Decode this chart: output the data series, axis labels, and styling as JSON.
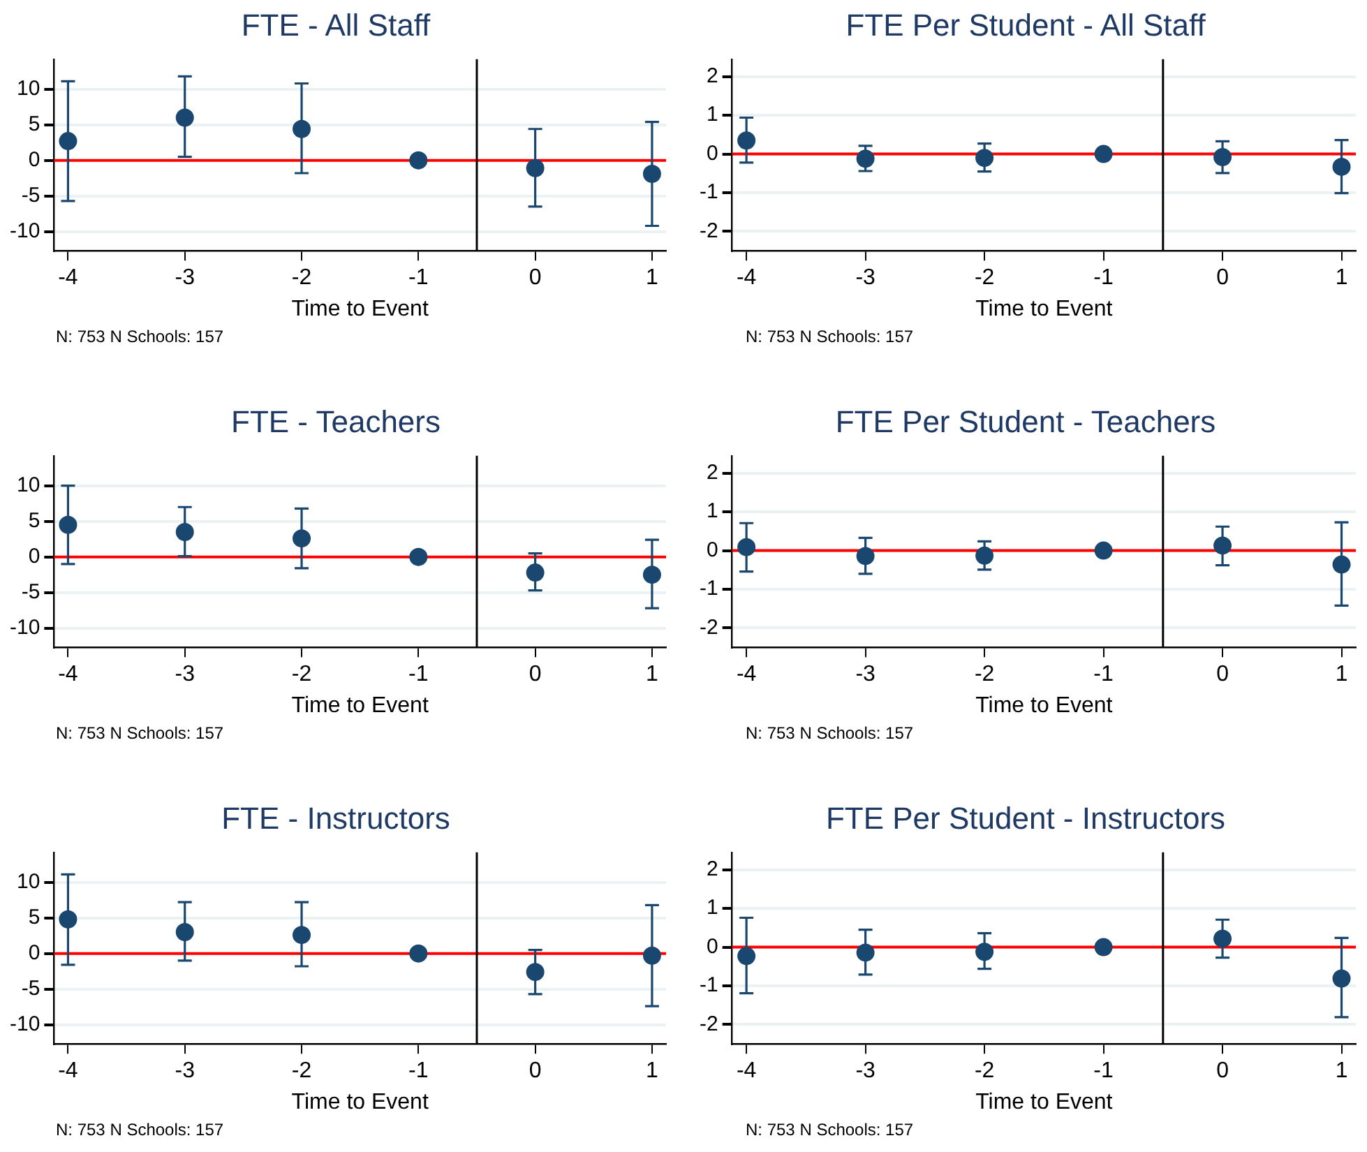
{
  "chart_data": [
    {
      "type": "scatter",
      "title": "FTE - All Staff",
      "xlabel": "Time to Event",
      "x": [
        -4,
        -3,
        -2,
        -1,
        0,
        1
      ],
      "color": "#1a476f",
      "marker": "circle",
      "grid": "y",
      "values": [
        2.7,
        6.0,
        4.4,
        0,
        -1.1,
        -1.9
      ],
      "errors": [
        [
          -5.7,
          11.1
        ],
        [
          0.5,
          11.8
        ],
        [
          -1.8,
          10.8
        ],
        null,
        [
          -6.5,
          4.4
        ],
        [
          -9.2,
          5.4
        ]
      ],
      "xlim": [
        -4.12,
        1.12
      ],
      "xticks": [
        -4,
        -3,
        -2,
        -1,
        0,
        1
      ],
      "ylim": [
        -12.7,
        14.2
      ],
      "yticks": [
        -10,
        -5,
        0,
        5,
        10
      ],
      "ref_lines": [
        {
          "axis": "y",
          "value": 0,
          "color": "#ff0000"
        },
        {
          "axis": "x",
          "value": -0.5,
          "color": "#000000"
        }
      ],
      "annotations": [
        "N: 753 N Schools: 157"
      ]
    },
    {
      "type": "scatter",
      "title": "FTE Per Student - All Staff",
      "xlabel": "Time to Event",
      "x": [
        -4,
        -3,
        -2,
        -1,
        0,
        1
      ],
      "color": "#1a476f",
      "marker": "circle",
      "grid": "y",
      "values": [
        0.35,
        -0.12,
        -0.1,
        0,
        -0.08,
        -0.33
      ],
      "errors": [
        [
          -0.22,
          0.94
        ],
        [
          -0.44,
          0.21
        ],
        [
          -0.45,
          0.27
        ],
        null,
        [
          -0.49,
          0.33
        ],
        [
          -1.01,
          0.36
        ]
      ],
      "xlim": [
        -4.12,
        1.12
      ],
      "xticks": [
        -4,
        -3,
        -2,
        -1,
        0,
        1
      ],
      "ylim": [
        -2.5,
        2.45
      ],
      "yticks": [
        -2,
        -1,
        0,
        1,
        2
      ],
      "ref_lines": [
        {
          "axis": "y",
          "value": 0,
          "color": "#ff0000"
        },
        {
          "axis": "x",
          "value": -0.5,
          "color": "#000000"
        }
      ],
      "annotations": [
        "N: 753 N Schools: 157"
      ]
    },
    {
      "type": "scatter",
      "title": "FTE - Teachers",
      "xlabel": "Time to Event",
      "x": [
        -4,
        -3,
        -2,
        -1,
        0,
        1
      ],
      "color": "#1a476f",
      "marker": "circle",
      "grid": "y",
      "values": [
        4.5,
        3.5,
        2.6,
        0,
        -2.2,
        -2.5
      ],
      "errors": [
        [
          -1.0,
          10.0
        ],
        [
          0.1,
          7.0
        ],
        [
          -1.6,
          6.8
        ],
        null,
        [
          -4.7,
          0.5
        ],
        [
          -7.2,
          2.4
        ]
      ],
      "xlim": [
        -4.12,
        1.12
      ],
      "xticks": [
        -4,
        -3,
        -2,
        -1,
        0,
        1
      ],
      "ylim": [
        -12.7,
        14.2
      ],
      "yticks": [
        -10,
        -5,
        0,
        5,
        10
      ],
      "ref_lines": [
        {
          "axis": "y",
          "value": 0,
          "color": "#ff0000"
        },
        {
          "axis": "x",
          "value": -0.5,
          "color": "#000000"
        }
      ],
      "annotations": [
        "N: 753 N Schools: 157"
      ]
    },
    {
      "type": "scatter",
      "title": "FTE Per Student - Teachers",
      "xlabel": "Time to Event",
      "x": [
        -4,
        -3,
        -2,
        -1,
        0,
        1
      ],
      "color": "#1a476f",
      "marker": "circle",
      "grid": "y",
      "values": [
        0.09,
        -0.14,
        -0.13,
        0,
        0.13,
        -0.36
      ],
      "errors": [
        [
          -0.54,
          0.71
        ],
        [
          -0.6,
          0.33
        ],
        [
          -0.49,
          0.24
        ],
        null,
        [
          -0.38,
          0.62
        ],
        [
          -1.42,
          0.73
        ]
      ],
      "xlim": [
        -4.12,
        1.12
      ],
      "xticks": [
        -4,
        -3,
        -2,
        -1,
        0,
        1
      ],
      "ylim": [
        -2.5,
        2.45
      ],
      "yticks": [
        -2,
        -1,
        0,
        1,
        2
      ],
      "ref_lines": [
        {
          "axis": "y",
          "value": 0,
          "color": "#ff0000"
        },
        {
          "axis": "x",
          "value": -0.5,
          "color": "#000000"
        }
      ],
      "annotations": [
        "N: 753 N Schools: 157"
      ]
    },
    {
      "type": "scatter",
      "title": "FTE - Instructors",
      "xlabel": "Time to Event",
      "x": [
        -4,
        -3,
        -2,
        -1,
        0,
        1
      ],
      "color": "#1a476f",
      "marker": "circle",
      "grid": "y",
      "values": [
        4.8,
        3.0,
        2.6,
        0,
        -2.6,
        -0.3
      ],
      "errors": [
        [
          -1.6,
          11.1
        ],
        [
          -1.0,
          7.2
        ],
        [
          -1.8,
          7.2
        ],
        null,
        [
          -5.7,
          0.5
        ],
        [
          -7.4,
          6.8
        ]
      ],
      "xlim": [
        -4.12,
        1.12
      ],
      "xticks": [
        -4,
        -3,
        -2,
        -1,
        0,
        1
      ],
      "ylim": [
        -12.7,
        14.2
      ],
      "yticks": [
        -10,
        -5,
        0,
        5,
        10
      ],
      "ref_lines": [
        {
          "axis": "y",
          "value": 0,
          "color": "#ff0000"
        },
        {
          "axis": "x",
          "value": -0.5,
          "color": "#000000"
        }
      ],
      "annotations": [
        "N: 753 N Schools: 157"
      ]
    },
    {
      "type": "scatter",
      "title": "FTE Per Student - Instructors",
      "xlabel": "Time to Event",
      "x": [
        -4,
        -3,
        -2,
        -1,
        0,
        1
      ],
      "color": "#1a476f",
      "marker": "circle",
      "grid": "y",
      "values": [
        -0.23,
        -0.14,
        -0.12,
        0,
        0.22,
        -0.81
      ],
      "errors": [
        [
          -1.19,
          0.76
        ],
        [
          -0.71,
          0.45
        ],
        [
          -0.56,
          0.36
        ],
        null,
        [
          -0.27,
          0.71
        ],
        [
          -1.81,
          0.24
        ]
      ],
      "xlim": [
        -4.12,
        1.12
      ],
      "xticks": [
        -4,
        -3,
        -2,
        -1,
        0,
        1
      ],
      "ylim": [
        -2.5,
        2.45
      ],
      "yticks": [
        -2,
        -1,
        0,
        1,
        2
      ],
      "ref_lines": [
        {
          "axis": "y",
          "value": 0,
          "color": "#ff0000"
        },
        {
          "axis": "x",
          "value": -0.5,
          "color": "#000000"
        }
      ],
      "annotations": [
        "N: 753 N Schools: 157"
      ]
    }
  ]
}
